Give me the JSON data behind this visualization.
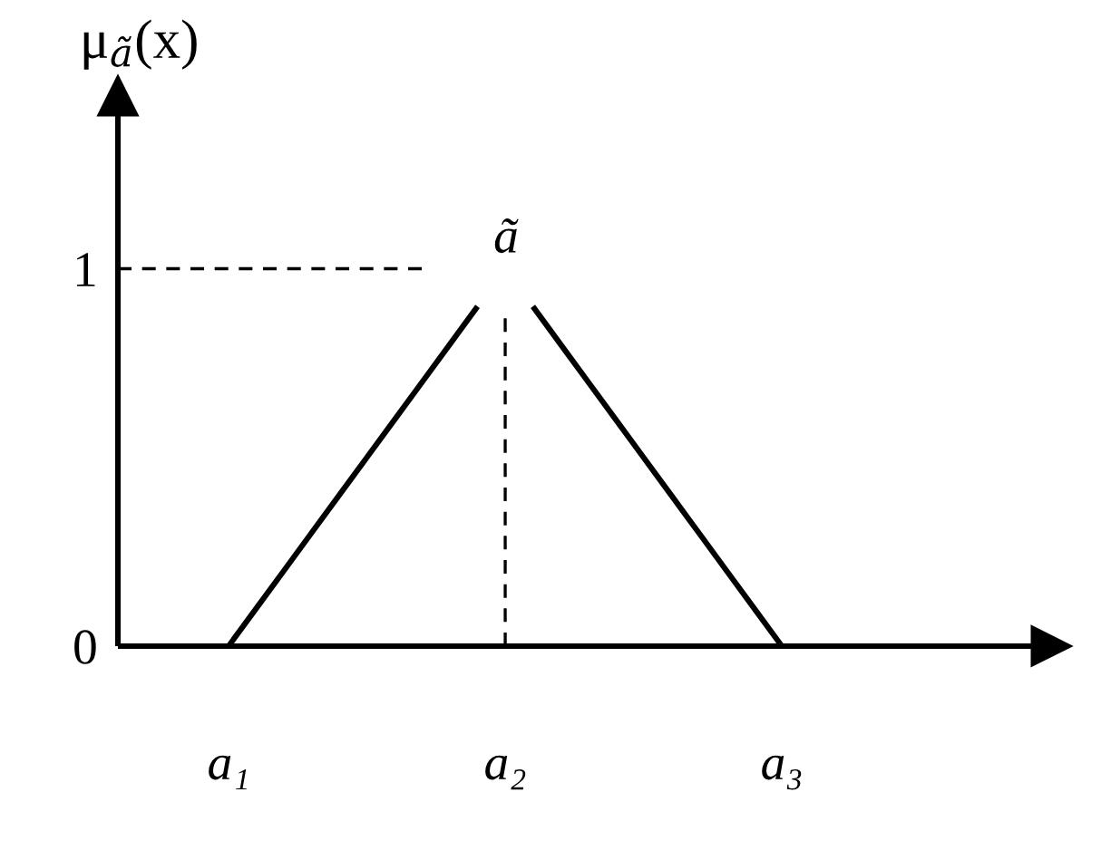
{
  "chart_data": {
    "type": "line",
    "ylabel": "μ$_{ã}$(x)",
    "categories": [
      null,
      null,
      null,
      null,
      "a₁",
      null,
      null,
      null,
      null,
      null,
      null,
      null,
      null,
      null,
      "a₂",
      null,
      null,
      null,
      null,
      null,
      null,
      null,
      null,
      null,
      "a₃"
    ],
    "series": [
      {
        "color": "#000000",
        "line_style": "solid",
        "values": [
          null,
          null,
          null,
          null,
          0,
          0.1,
          0.2,
          0.3,
          0.4,
          0.5,
          0.6,
          0.7,
          0.8,
          0.9,
          null,
          0.9,
          0.8,
          0.7,
          0.6,
          0.5,
          0.4,
          0.3,
          0.2,
          0.1,
          0
        ]
      },
      {
        "color": "#000000",
        "line_style": "dashed",
        "values": [
          1,
          1,
          1,
          1,
          1,
          1,
          1,
          1,
          1,
          1,
          1,
          1,
          null,
          null,
          null,
          null,
          null,
          null,
          null,
          null,
          null,
          null,
          null,
          null,
          null
        ]
      },
      {
        "color": "#000000",
        "line_style": "dashed",
        "x": [
          "a₂",
          "a₂"
        ],
        "values": [
          0,
          0.88
        ]
      }
    ],
    "ylim": [
      0,
      1.46
    ],
    "yticks": [
      0,
      1
    ],
    "annotations": [
      "ã"
    ]
  }
}
